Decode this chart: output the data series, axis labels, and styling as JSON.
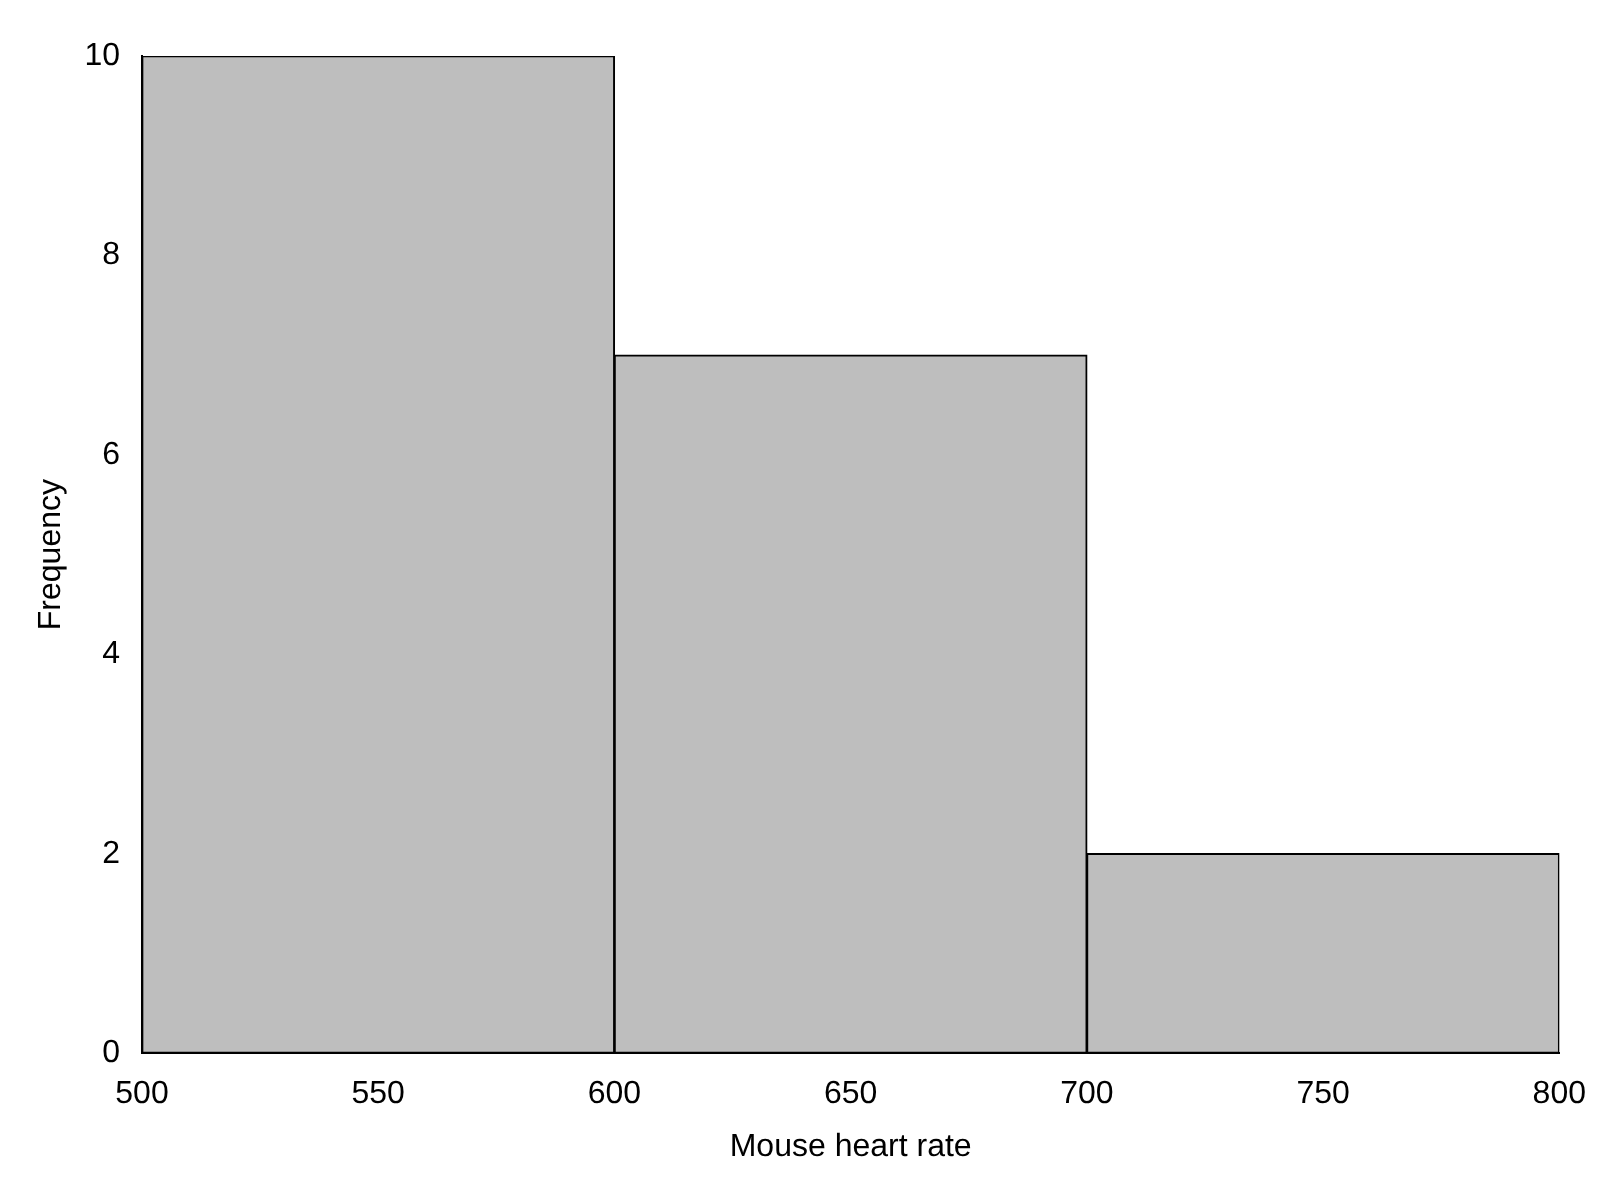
{
  "chart_data": {
    "type": "histogram",
    "xlabel": "Mouse heart rate",
    "ylabel": "Frequency",
    "bins": [
      500,
      600,
      700,
      800
    ],
    "values": [
      10,
      7,
      2
    ],
    "color": "#bebebe",
    "xlim": [
      500,
      800
    ],
    "xticks": [
      500,
      550,
      600,
      650,
      700,
      750,
      800
    ],
    "ylim": [
      0,
      10
    ],
    "yticks": [
      0,
      2,
      4,
      6,
      8,
      10
    ],
    "grid": false,
    "legend": false
  }
}
